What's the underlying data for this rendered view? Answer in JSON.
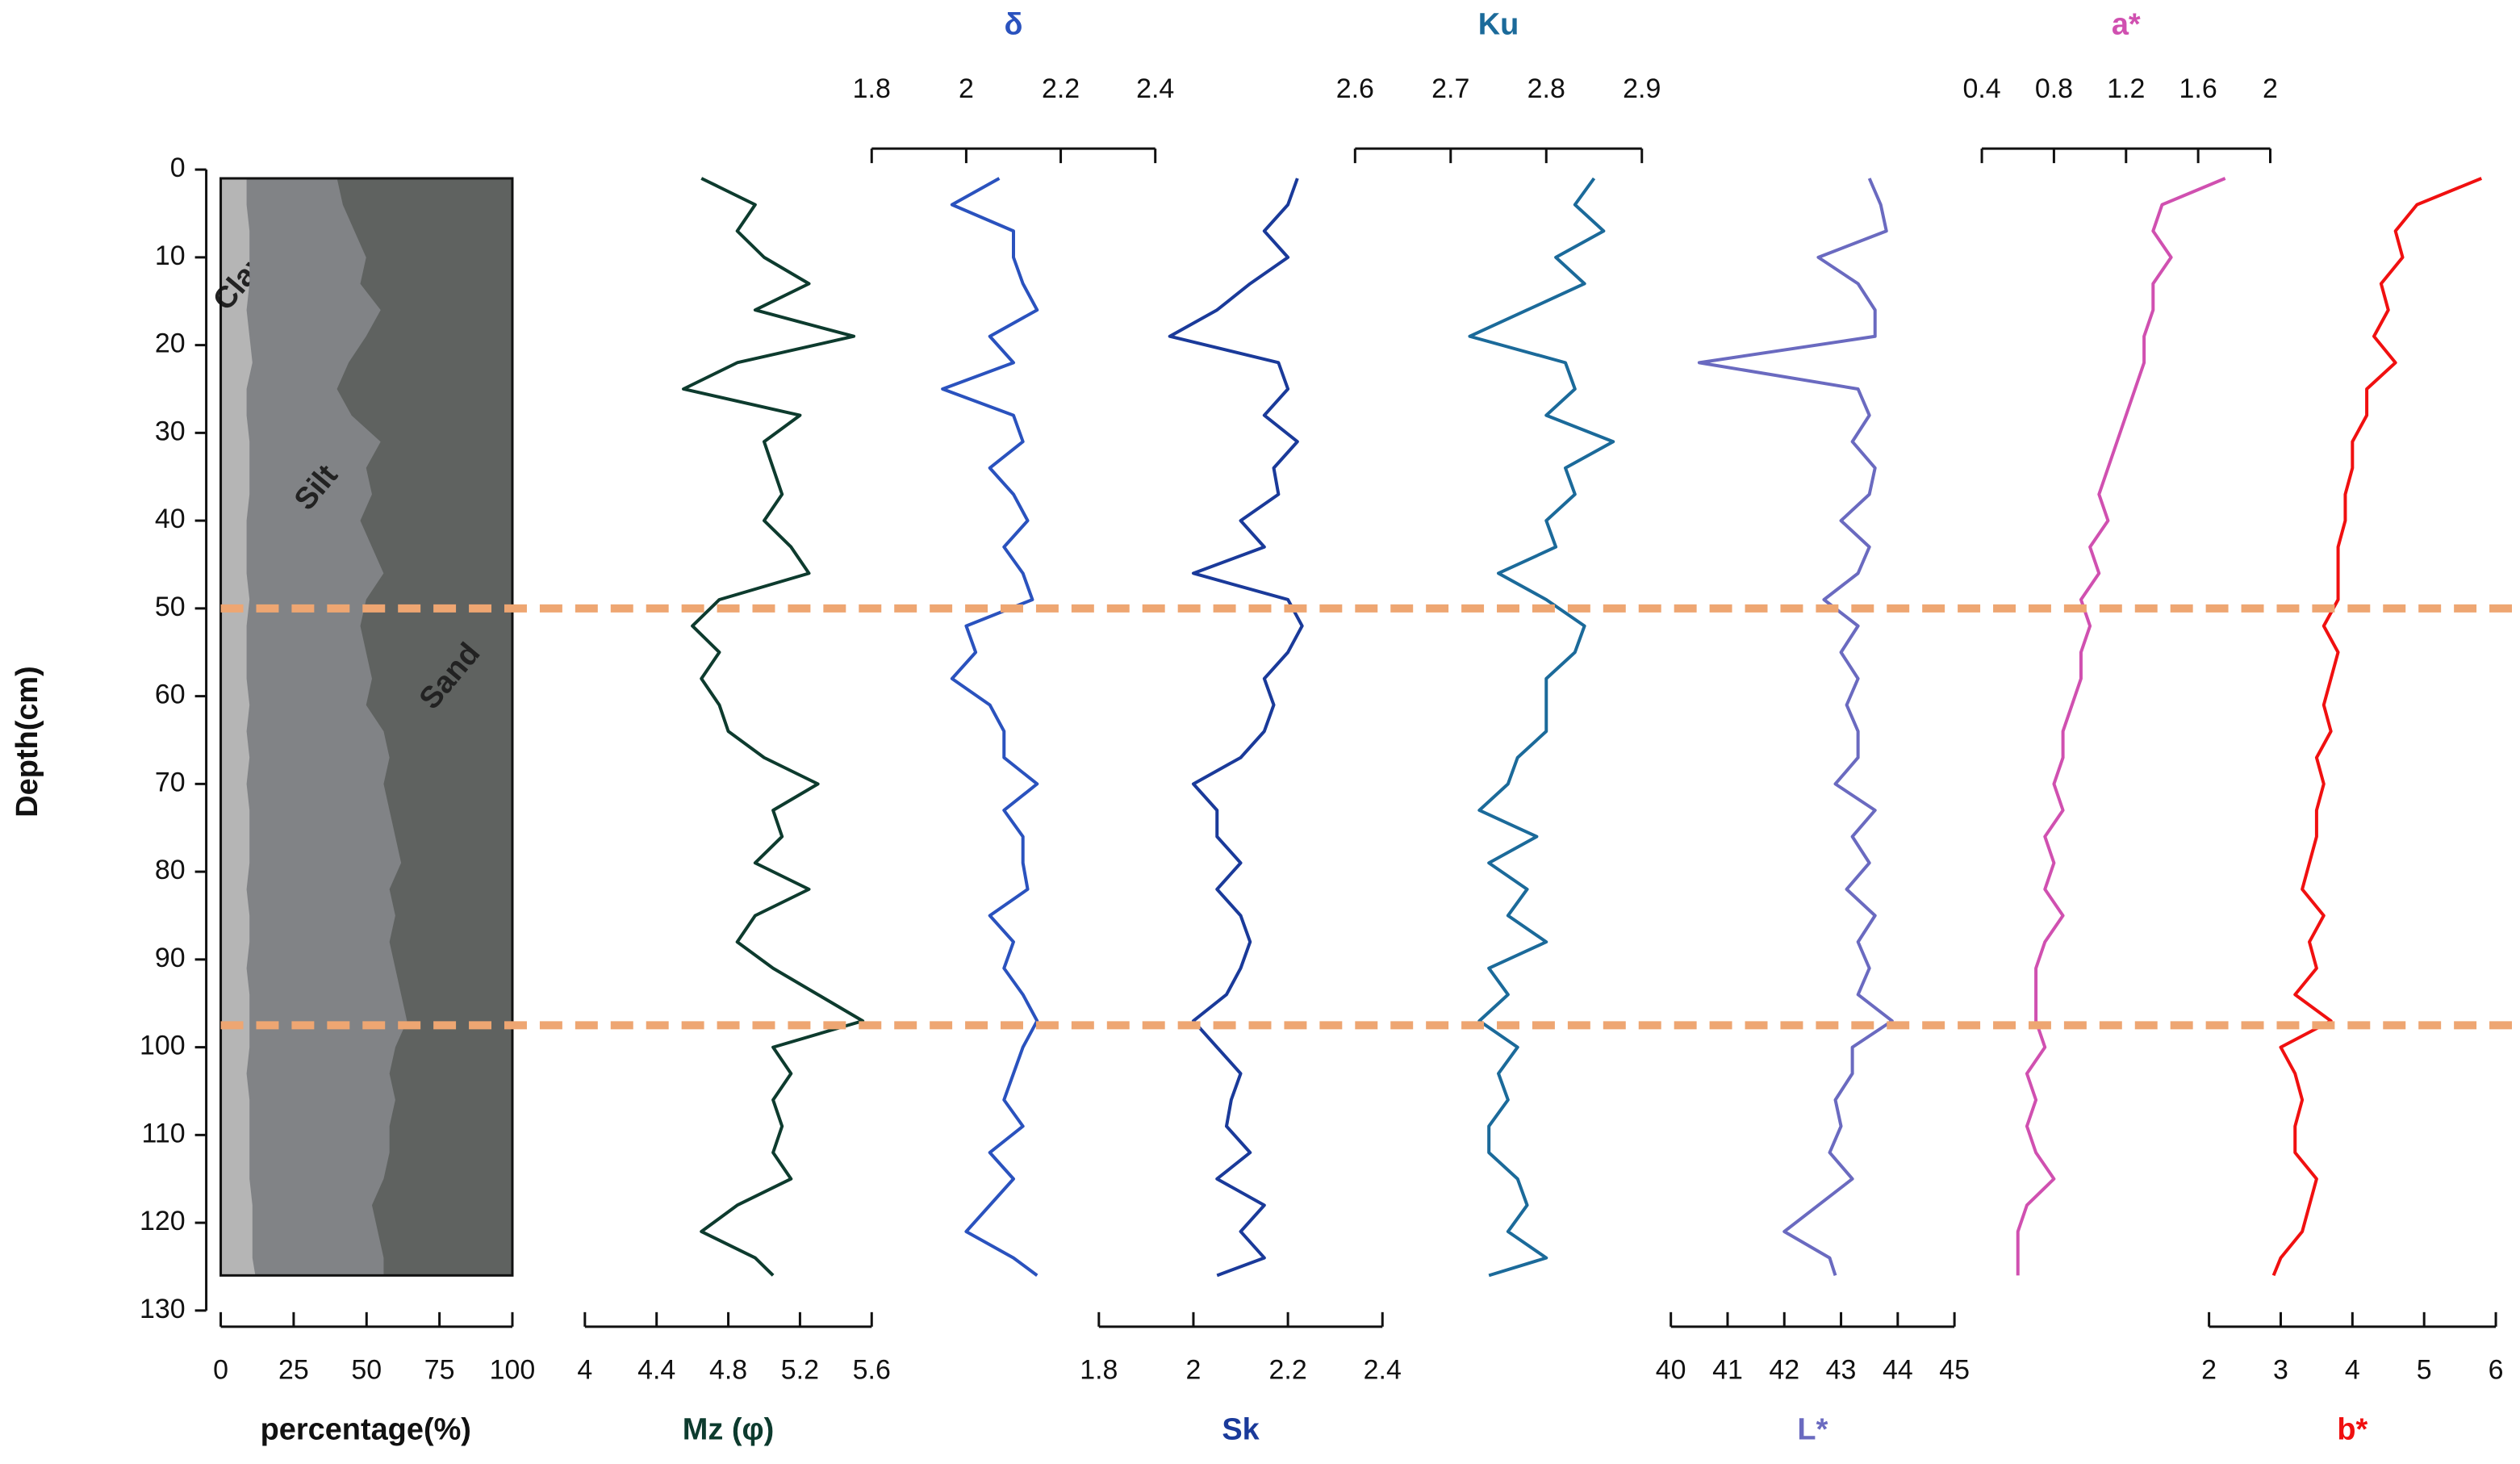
{
  "chart_data": {
    "type": "line",
    "orientation": "vertical",
    "ylabel": "Depth(cm)",
    "ylim": [
      0,
      130
    ],
    "yticks": [
      0,
      10,
      20,
      30,
      40,
      50,
      60,
      70,
      80,
      90,
      100,
      110,
      120,
      130
    ],
    "y": [
      1,
      4,
      7,
      10,
      13,
      16,
      19,
      22,
      25,
      28,
      31,
      34,
      37,
      40,
      43,
      46,
      49,
      52,
      55,
      58,
      61,
      64,
      67,
      70,
      73,
      76,
      79,
      82,
      85,
      88,
      91,
      94,
      97,
      100,
      103,
      106,
      109,
      112,
      115,
      118,
      121,
      124,
      126
    ],
    "stack": {
      "type": "area",
      "xlabel": "percentage(%)",
      "xlim": [
        0,
        100
      ],
      "xticks": [
        0,
        25,
        50,
        75,
        100
      ],
      "series": [
        {
          "name": "Clay",
          "color": "#b5b5b5",
          "values": [
            9,
            9,
            10,
            10,
            10,
            9,
            10,
            11,
            9,
            9,
            10,
            10,
            10,
            9,
            9,
            9,
            10,
            9,
            9,
            9,
            10,
            9,
            10,
            9,
            10,
            10,
            10,
            9,
            10,
            10,
            9,
            10,
            10,
            10,
            9,
            10,
            10,
            10,
            10,
            11,
            11,
            11,
            12
          ]
        },
        {
          "name": "Silt",
          "color": "#818386",
          "values": [
            31,
            33,
            36,
            40,
            38,
            46,
            40,
            33,
            31,
            36,
            45,
            40,
            42,
            39,
            43,
            47,
            40,
            39,
            41,
            43,
            40,
            47,
            48,
            47,
            48,
            50,
            52,
            49,
            50,
            48,
            51,
            52,
            54,
            50,
            49,
            50,
            48,
            48,
            46,
            41,
            43,
            45,
            44
          ]
        },
        {
          "name": "Sand",
          "color": "#5f6260",
          "values": [
            60,
            58,
            54,
            50,
            52,
            45,
            50,
            56,
            60,
            55,
            45,
            50,
            48,
            52,
            48,
            44,
            50,
            52,
            50,
            48,
            50,
            44,
            42,
            44,
            42,
            40,
            38,
            42,
            40,
            42,
            40,
            38,
            36,
            40,
            42,
            40,
            42,
            42,
            44,
            48,
            46,
            44,
            44
          ]
        }
      ]
    },
    "series": [
      {
        "name": "Mz (φ)",
        "color": "#0d3b2e",
        "axis": "bottom",
        "xlim": [
          4,
          5.6
        ],
        "xticks": [
          4,
          4.4,
          4.8,
          5.2,
          5.6
        ],
        "values": [
          4.65,
          4.95,
          4.85,
          5.0,
          5.25,
          4.95,
          5.5,
          4.85,
          4.55,
          5.2,
          5.0,
          5.05,
          5.1,
          5.0,
          5.15,
          5.25,
          4.75,
          4.6,
          4.75,
          4.65,
          4.75,
          4.8,
          5.0,
          5.3,
          5.05,
          5.1,
          4.95,
          5.25,
          4.95,
          4.85,
          5.05,
          5.3,
          5.55,
          5.05,
          5.15,
          5.05,
          5.1,
          5.05,
          5.15,
          4.85,
          4.65,
          4.95,
          5.05
        ]
      },
      {
        "name": "δ",
        "color": "#2a52be",
        "axis": "top",
        "xlim": [
          1.8,
          2.4
        ],
        "xticks": [
          1.8,
          2,
          2.2,
          2.4
        ],
        "values": [
          2.07,
          1.97,
          2.1,
          2.1,
          2.12,
          2.15,
          2.05,
          2.1,
          1.95,
          2.1,
          2.12,
          2.05,
          2.1,
          2.13,
          2.08,
          2.12,
          2.14,
          2.0,
          2.02,
          1.97,
          2.05,
          2.08,
          2.08,
          2.15,
          2.08,
          2.12,
          2.12,
          2.13,
          2.05,
          2.1,
          2.08,
          2.12,
          2.15,
          2.12,
          2.1,
          2.08,
          2.12,
          2.05,
          2.1,
          2.05,
          2.0,
          2.1,
          2.15
        ]
      },
      {
        "name": "Sk",
        "color": "#1a3a9a",
        "axis": "bottom",
        "xlim": [
          1.8,
          2.4
        ],
        "xticks": [
          1.8,
          2,
          2.2,
          2.4
        ],
        "values": [
          2.22,
          2.2,
          2.15,
          2.2,
          2.12,
          2.05,
          1.95,
          2.18,
          2.2,
          2.15,
          2.22,
          2.17,
          2.18,
          2.1,
          2.15,
          2.0,
          2.2,
          2.23,
          2.2,
          2.15,
          2.17,
          2.15,
          2.1,
          2.0,
          2.05,
          2.05,
          2.1,
          2.05,
          2.1,
          2.12,
          2.1,
          2.07,
          2.0,
          2.05,
          2.1,
          2.08,
          2.07,
          2.12,
          2.05,
          2.15,
          2.1,
          2.15,
          2.05
        ]
      },
      {
        "name": "Ku",
        "color": "#1b6a9a",
        "axis": "top",
        "xlim": [
          2.6,
          2.9
        ],
        "xticks": [
          2.6,
          2.7,
          2.8,
          2.9
        ],
        "values": [
          2.85,
          2.83,
          2.86,
          2.81,
          2.84,
          2.78,
          2.72,
          2.82,
          2.83,
          2.8,
          2.87,
          2.82,
          2.83,
          2.8,
          2.81,
          2.75,
          2.8,
          2.84,
          2.83,
          2.8,
          2.8,
          2.8,
          2.77,
          2.76,
          2.73,
          2.79,
          2.74,
          2.78,
          2.76,
          2.8,
          2.74,
          2.76,
          2.73,
          2.77,
          2.75,
          2.76,
          2.74,
          2.74,
          2.77,
          2.78,
          2.76,
          2.8,
          2.74
        ]
      },
      {
        "name": "L*",
        "color": "#6a6ac0",
        "axis": "bottom",
        "xlim": [
          40,
          45
        ],
        "xticks": [
          40,
          41,
          42,
          43,
          44,
          45
        ],
        "values": [
          43.5,
          43.7,
          43.8,
          42.6,
          43.3,
          43.6,
          43.6,
          40.5,
          43.3,
          43.5,
          43.2,
          43.6,
          43.5,
          43.0,
          43.5,
          43.3,
          42.7,
          43.3,
          43.0,
          43.3,
          43.1,
          43.3,
          43.3,
          42.9,
          43.6,
          43.2,
          43.5,
          43.1,
          43.6,
          43.3,
          43.5,
          43.3,
          43.9,
          43.2,
          43.2,
          42.9,
          43.0,
          42.8,
          43.2,
          42.6,
          42.0,
          42.8,
          42.9
        ]
      },
      {
        "name": "a*",
        "color": "#d050b0",
        "axis": "top",
        "xlim": [
          0.4,
          2
        ],
        "xticks": [
          0.4,
          0.8,
          1.2,
          1.6,
          2
        ],
        "values": [
          1.75,
          1.4,
          1.35,
          1.45,
          1.35,
          1.35,
          1.3,
          1.3,
          1.25,
          1.2,
          1.15,
          1.1,
          1.05,
          1.1,
          1.0,
          1.05,
          0.95,
          1.0,
          0.95,
          0.95,
          0.9,
          0.85,
          0.85,
          0.8,
          0.85,
          0.75,
          0.8,
          0.75,
          0.85,
          0.75,
          0.7,
          0.7,
          0.7,
          0.75,
          0.65,
          0.7,
          0.65,
          0.7,
          0.8,
          0.65,
          0.6,
          0.6,
          0.6
        ]
      },
      {
        "name": "b*",
        "color": "#f01010",
        "axis": "bottom",
        "xlim": [
          2,
          6
        ],
        "xticks": [
          2,
          3,
          4,
          5,
          6
        ],
        "values": [
          5.8,
          4.9,
          4.6,
          4.7,
          4.4,
          4.5,
          4.3,
          4.6,
          4.2,
          4.2,
          4.0,
          4.0,
          3.9,
          3.9,
          3.8,
          3.8,
          3.8,
          3.6,
          3.8,
          3.7,
          3.6,
          3.7,
          3.5,
          3.6,
          3.5,
          3.5,
          3.4,
          3.3,
          3.6,
          3.4,
          3.5,
          3.2,
          3.7,
          3.0,
          3.2,
          3.3,
          3.2,
          3.2,
          3.5,
          3.4,
          3.3,
          3.0,
          2.9
        ]
      }
    ],
    "reference_lines": [
      50,
      97.5
    ],
    "reference_color": "#eea672"
  }
}
